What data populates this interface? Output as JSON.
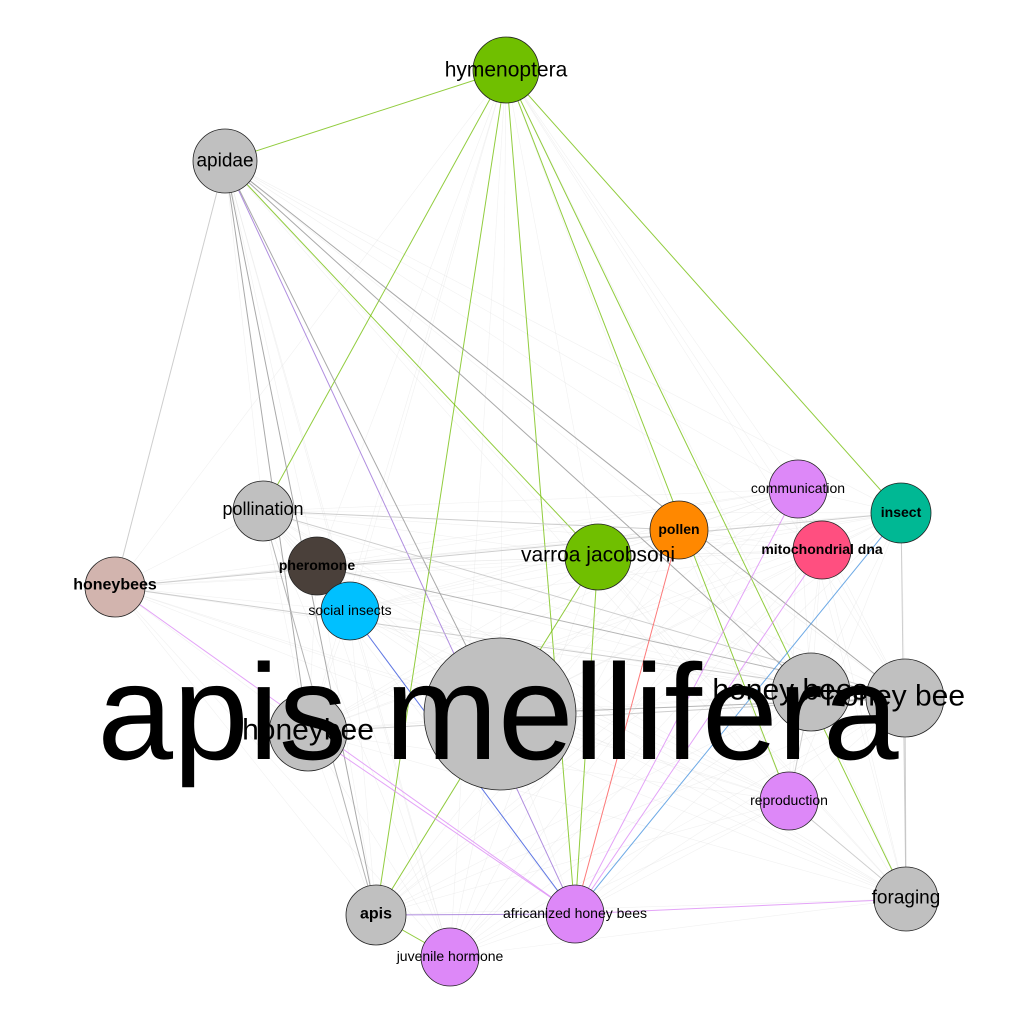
{
  "graph": {
    "nodes": [
      {
        "id": "apis_mellifera",
        "label": "apis mellifera",
        "color": "#c0c0c0",
        "weight": "huge"
      },
      {
        "id": "hymenoptera",
        "label": "hymenoptera",
        "color": "#70bf00",
        "weight": "large"
      },
      {
        "id": "apidae",
        "label": "apidae",
        "color": "#c0c0c0",
        "weight": "large"
      },
      {
        "id": "pollination",
        "label": "pollination",
        "color": "#c0c0c0",
        "weight": "large"
      },
      {
        "id": "honeybees",
        "label": "honeybees",
        "color": "#d2b4ae",
        "weight": "bold"
      },
      {
        "id": "pheromone",
        "label": "pheromone",
        "color": "#4a403a",
        "weight": "bold"
      },
      {
        "id": "social_insects",
        "label": "social insects",
        "color": "#00c0ff",
        "weight": "small"
      },
      {
        "id": "varroa_jacobsoni",
        "label": "varroa jacobsoni",
        "color": "#70bf00",
        "weight": "large"
      },
      {
        "id": "pollen",
        "label": "pollen",
        "color": "#ff8800",
        "weight": "bold"
      },
      {
        "id": "communication",
        "label": "communication",
        "color": "#dd88f8",
        "weight": "small"
      },
      {
        "id": "insect",
        "label": "insect",
        "color": "#00b894",
        "weight": "bold"
      },
      {
        "id": "mitochondrial_dna",
        "label": "mitochondrial dna",
        "color": "#ff4f80",
        "weight": "bold"
      },
      {
        "id": "honeybee",
        "label": "honeybee",
        "color": "#c0c0c0",
        "weight": "xl"
      },
      {
        "id": "honey_bees",
        "label": "honey bees",
        "color": "#c0c0c0",
        "weight": "xl"
      },
      {
        "id": "honey_bee",
        "label": "honey bee",
        "color": "#c0c0c0",
        "weight": "xl"
      },
      {
        "id": "reproduction",
        "label": "reproduction",
        "color": "#dd88f8",
        "weight": "small"
      },
      {
        "id": "foraging",
        "label": "foraging",
        "color": "#c0c0c0",
        "weight": "large"
      },
      {
        "id": "apis",
        "label": "apis",
        "color": "#c0c0c0",
        "weight": "bold"
      },
      {
        "id": "africanized_honey_bees",
        "label": "africanized honey bees",
        "color": "#dd88f8",
        "weight": "small"
      },
      {
        "id": "juvenile_hormone",
        "label": "juvenile hormone",
        "color": "#dd88f8",
        "weight": "small"
      }
    ],
    "edges": [
      {
        "source": "hymenoptera",
        "target": "apidae",
        "color": "#70bf00"
      },
      {
        "source": "hymenoptera",
        "target": "apis",
        "color": "#70bf00"
      },
      {
        "source": "hymenoptera",
        "target": "africanized_honey_bees",
        "color": "#70bf00"
      },
      {
        "source": "hymenoptera",
        "target": "reproduction",
        "color": "#70bf00"
      },
      {
        "source": "hymenoptera",
        "target": "insect",
        "color": "#70bf00"
      },
      {
        "source": "hymenoptera",
        "target": "foraging",
        "color": "#70bf00"
      },
      {
        "source": "hymenoptera",
        "target": "pollination",
        "color": "#70bf00"
      },
      {
        "source": "apidae",
        "target": "varroa_jacobsoni",
        "color": "#70bf00"
      },
      {
        "source": "apidae",
        "target": "honey_bee",
        "color": "#909090"
      },
      {
        "source": "apidae",
        "target": "honey_bees",
        "color": "#909090"
      },
      {
        "source": "apidae",
        "target": "honeybee",
        "color": "#909090"
      },
      {
        "source": "apidae",
        "target": "apis",
        "color": "#909090"
      },
      {
        "source": "apidae",
        "target": "africanized_honey_bees",
        "color": "#9a6cd8"
      },
      {
        "source": "apidae",
        "target": "apis_mellifera",
        "color": "#909090"
      },
      {
        "source": "apidae",
        "target": "honeybees",
        "color": "#c0c0c0"
      },
      {
        "source": "pollination",
        "target": "apis",
        "color": "#a0a0a0"
      },
      {
        "source": "pollination",
        "target": "honey_bee",
        "color": "#c0c0c0"
      },
      {
        "source": "pollination",
        "target": "pollen",
        "color": "#c0c0c0"
      },
      {
        "source": "honeybees",
        "target": "africanized_honey_bees",
        "color": "#dd88f8"
      },
      {
        "source": "honeybees",
        "target": "insect",
        "color": "#c0c0c0"
      },
      {
        "source": "honeybees",
        "target": "honey_bee",
        "color": "#c0c0c0"
      },
      {
        "source": "pheromone",
        "target": "honey_bee",
        "color": "#a0a0a0"
      },
      {
        "source": "social_insects",
        "target": "africanized_honey_bees",
        "color": "#3050e0"
      },
      {
        "source": "varroa_jacobsoni",
        "target": "apis_mellifera",
        "color": "#70bf00"
      },
      {
        "source": "varroa_jacobsoni",
        "target": "africanized_honey_bees",
        "color": "#70bf00"
      },
      {
        "source": "pollen",
        "target": "africanized_honey_bees",
        "color": "#ff5050"
      },
      {
        "source": "communication",
        "target": "africanized_honey_bees",
        "color": "#dd88f8"
      },
      {
        "source": "mitochondrial_dna",
        "target": "africanized_honey_bees",
        "color": "#dd88f8"
      },
      {
        "source": "insect",
        "target": "africanized_honey_bees",
        "color": "#4090e0"
      },
      {
        "source": "insect",
        "target": "foraging",
        "color": "#c0c0c0"
      },
      {
        "source": "apis_mellifera",
        "target": "apis",
        "color": "#70bf00"
      },
      {
        "source": "apis_mellifera",
        "target": "honey_bee",
        "color": "#a0a0a0"
      },
      {
        "source": "apis",
        "target": "africanized_honey_bees",
        "color": "#9a6cd8"
      },
      {
        "source": "apis",
        "target": "juvenile_hormone",
        "color": "#70bf00"
      },
      {
        "source": "africanized_honey_bees",
        "target": "foraging",
        "color": "#dd88f8"
      },
      {
        "source": "honey_bees",
        "target": "reproduction",
        "color": "#c0c0c0"
      },
      {
        "source": "honeybee",
        "target": "africanized_honey_bees",
        "color": "#dd88f8"
      },
      {
        "source": "honeybee",
        "target": "honey_bee",
        "color": "#c0c0c0"
      },
      {
        "source": "reproduction",
        "target": "foraging",
        "color": "#c0c0c0"
      },
      {
        "source": "honey_bee",
        "target": "foraging",
        "color": "#c0c0c0"
      }
    ]
  }
}
